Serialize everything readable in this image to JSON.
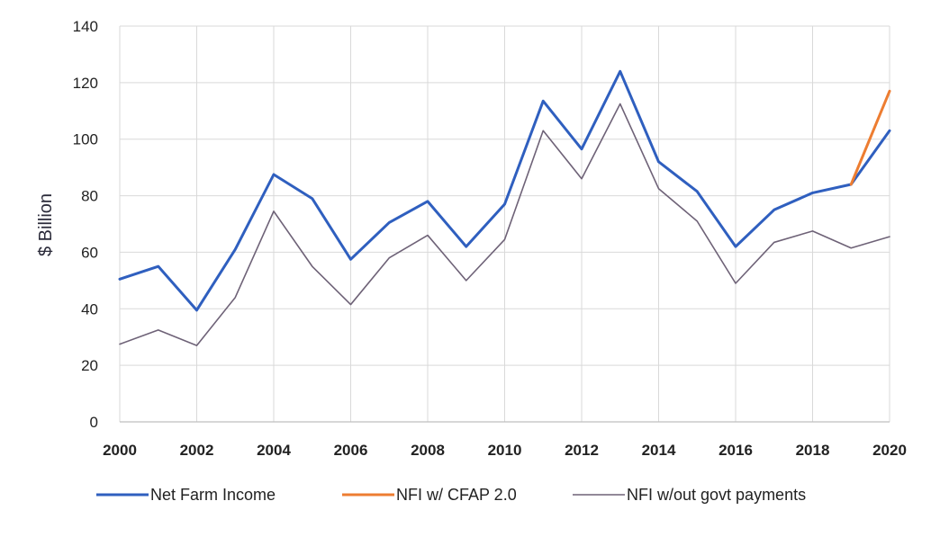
{
  "chart_data": {
    "type": "line",
    "title": "",
    "xlabel": "",
    "ylabel": "$ Billion",
    "xlim": [
      2000,
      2020
    ],
    "ylim": [
      0,
      140
    ],
    "grid": true,
    "legend_position": "bottom",
    "x_ticks": [
      2000,
      2002,
      2004,
      2006,
      2008,
      2010,
      2012,
      2014,
      2016,
      2018,
      2020
    ],
    "y_ticks": [
      0,
      20,
      40,
      60,
      80,
      100,
      120,
      140
    ],
    "series": [
      {
        "name": "Net Farm Income",
        "color": "#2f5fbf",
        "x": [
          2000,
          2001,
          2002,
          2003,
          2004,
          2005,
          2006,
          2007,
          2008,
          2009,
          2010,
          2011,
          2012,
          2013,
          2014,
          2015,
          2016,
          2017,
          2018,
          2019,
          2020
        ],
        "values": [
          50.5,
          55,
          39.5,
          61,
          87.5,
          79,
          57.5,
          70.5,
          78,
          62,
          77,
          113.5,
          96.5,
          124,
          92,
          81.5,
          62,
          75,
          81,
          84,
          103
        ]
      },
      {
        "name": "NFI w/ CFAP 2.0",
        "color": "#ed7d31",
        "x": [
          2019,
          2020
        ],
        "values": [
          84,
          117
        ]
      },
      {
        "name": "NFI w/out govt payments",
        "color": "#6e6277",
        "x": [
          2000,
          2001,
          2002,
          2003,
          2004,
          2005,
          2006,
          2007,
          2008,
          2009,
          2010,
          2011,
          2012,
          2013,
          2014,
          2015,
          2016,
          2017,
          2018,
          2019,
          2020
        ],
        "values": [
          27.5,
          32.5,
          27,
          44,
          74.5,
          55,
          41.5,
          58,
          66,
          50,
          64.5,
          103,
          86,
          112.5,
          82.5,
          71,
          49,
          63.5,
          67.5,
          61.5,
          65.5
        ]
      }
    ]
  }
}
